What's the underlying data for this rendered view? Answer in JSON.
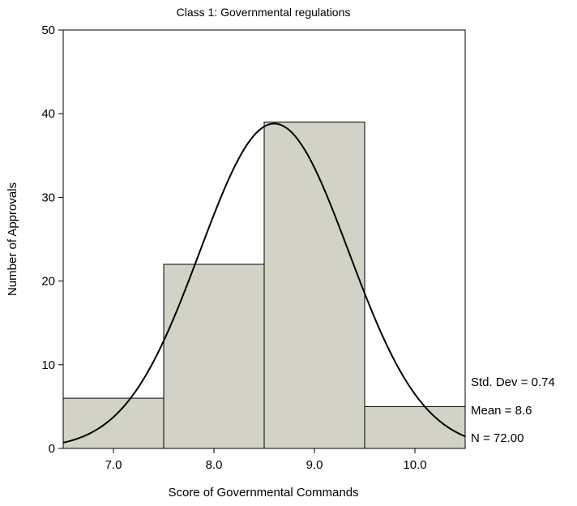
{
  "chart_data": {
    "type": "bar",
    "title": "Class 1: Governmental regulations",
    "xlabel": "Score of Governmental Commands",
    "ylabel": "Number of Approvals",
    "bins": [
      {
        "from": 6.5,
        "to": 7.5,
        "value": 6
      },
      {
        "from": 7.5,
        "to": 8.5,
        "value": 22
      },
      {
        "from": 8.5,
        "to": 9.5,
        "value": 39
      },
      {
        "from": 9.5,
        "to": 10.5,
        "value": 5
      }
    ],
    "xlim": [
      6.5,
      10.5
    ],
    "ylim": [
      0,
      50
    ],
    "xticks": [
      "7.0",
      "8.0",
      "9.0",
      "10.0"
    ],
    "xtick_values": [
      7.0,
      8.0,
      9.0,
      10.0
    ],
    "yticks": [
      "0",
      "10",
      "20",
      "30",
      "40",
      "50"
    ],
    "ytick_values": [
      0,
      10,
      20,
      30,
      40,
      50
    ],
    "normal_curve": {
      "mean": 8.6,
      "std_dev": 0.74,
      "n": 72,
      "bin_width": 1
    },
    "stats": {
      "std_dev_label": "Std. Dev = 0.74",
      "mean_label": "Mean = 8.6",
      "n_label": "N = 72.00"
    },
    "grid": false,
    "colors": {
      "bar_fill": "#d2d2c6",
      "bar_stroke": "#000000",
      "curve": "#000000"
    }
  }
}
